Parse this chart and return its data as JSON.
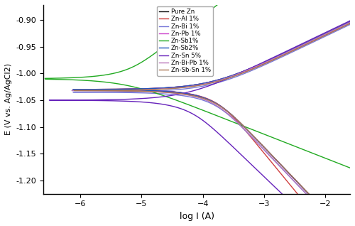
{
  "xlabel": "log I (A)",
  "ylabel": "E (V vs. Ag/AgCl2)",
  "xlim": [
    -6.6,
    -1.6
  ],
  "ylim": [
    -1.225,
    -0.872
  ],
  "xticks": [
    -6,
    -5,
    -4,
    -3,
    -2
  ],
  "yticks": [
    -1.2,
    -1.15,
    -1.1,
    -1.05,
    -1.0,
    -0.95,
    -0.9
  ],
  "series": [
    {
      "label": "Pure Zn",
      "color": "#111111",
      "ecorr": -1.03,
      "log_icorr": -3.9,
      "ba": 0.055,
      "bc": 0.12
    },
    {
      "label": "Zn-Al 1%",
      "color": "#d04040",
      "ecorr": -1.03,
      "log_icorr": -3.85,
      "ba": 0.055,
      "bc": 0.14
    },
    {
      "label": "Zn-Bi 1%",
      "color": "#7878d8",
      "ecorr": -1.035,
      "log_icorr": -3.9,
      "ba": 0.055,
      "bc": 0.12
    },
    {
      "label": "Zn-Pb 1%",
      "color": "#cc44cc",
      "ecorr": -1.03,
      "log_icorr": -3.9,
      "ba": 0.055,
      "bc": 0.12
    },
    {
      "label": "Zn-Sb1%",
      "color": "#22aa22",
      "ecorr": -1.01,
      "log_icorr": -5.3,
      "ba": 0.09,
      "bc": 0.045
    },
    {
      "label": "Zn-Sb2%",
      "color": "#2255bb",
      "ecorr": -1.03,
      "log_icorr": -3.9,
      "ba": 0.055,
      "bc": 0.12
    },
    {
      "label": "Zn-Sn 5%",
      "color": "#6622bb",
      "ecorr": -1.05,
      "log_icorr": -4.3,
      "ba": 0.055,
      "bc": 0.11
    },
    {
      "label": "Zn-Bi-Pb 1%",
      "color": "#bb77bb",
      "ecorr": -1.032,
      "log_icorr": -3.92,
      "ba": 0.055,
      "bc": 0.12
    },
    {
      "label": "Zn-Sb-Sn 1%",
      "color": "#aa7755",
      "ecorr": -1.032,
      "log_icorr": -3.88,
      "ba": 0.055,
      "bc": 0.12
    }
  ]
}
